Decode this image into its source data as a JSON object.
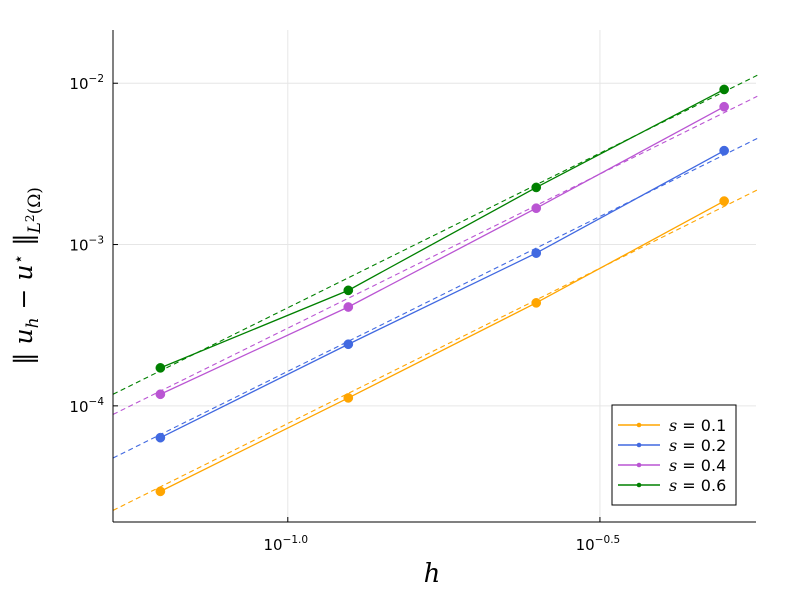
{
  "chart_data": {
    "type": "line",
    "scale": {
      "x": "log10",
      "y": "log10"
    },
    "xlabel": "h",
    "ylabel": "‖ u_h − u ⋆ ‖_L²(Ω)",
    "xlim_log10": [
      -1.28,
      -0.25
    ],
    "ylim_log10": [
      -4.72,
      -1.67
    ],
    "x_ticks": [
      {
        "log10": -1.0,
        "base": "10",
        "exp": "−1.0"
      },
      {
        "log10": -0.5,
        "base": "10",
        "exp": "−0.5"
      }
    ],
    "y_ticks": [
      {
        "log10": -4,
        "base": "10",
        "exp": "−4"
      },
      {
        "log10": -3,
        "base": "10",
        "exp": "−3"
      },
      {
        "log10": -2,
        "base": "10",
        "exp": "−2"
      }
    ],
    "grid": true,
    "legend_position": "bottom-right",
    "x": [
      0.0625,
      0.125,
      0.25,
      0.5
    ],
    "series": [
      {
        "name": "s = 0.1",
        "label_var": "s",
        "label_eq": " = ",
        "label_val": "0.1",
        "color": "#FFA500",
        "values": [
          2.95e-05,
          0.000112,
          0.000435,
          0.00186
        ],
        "fit": {
          "x0": 0.0525,
          "y0": 2.25e-05,
          "x1": 0.565,
          "y1": 0.00218
        }
      },
      {
        "name": "s = 0.2",
        "label_var": "s",
        "label_eq": " = ",
        "label_val": "0.2",
        "color": "#4169E1",
        "values": [
          6.35e-05,
          0.000241,
          0.000885,
          0.00382
        ],
        "fit": {
          "x0": 0.0525,
          "y0": 4.75e-05,
          "x1": 0.565,
          "y1": 0.00455
        }
      },
      {
        "name": "s = 0.4",
        "label_var": "s",
        "label_eq": " = ",
        "label_val": "0.4",
        "color": "#BA55D3",
        "values": [
          0.000118,
          0.00041,
          0.00168,
          0.00715
        ],
        "fit": {
          "x0": 0.0525,
          "y0": 8.85e-05,
          "x1": 0.565,
          "y1": 0.0083
        }
      },
      {
        "name": "s = 0.6",
        "label_var": "s",
        "label_eq": " = ",
        "label_val": "0.6",
        "color": "#008000",
        "values": [
          0.000172,
          0.00052,
          0.00226,
          0.00915
        ],
        "fit": {
          "x0": 0.0525,
          "y0": 0.000118,
          "x1": 0.565,
          "y1": 0.0112
        }
      }
    ]
  }
}
